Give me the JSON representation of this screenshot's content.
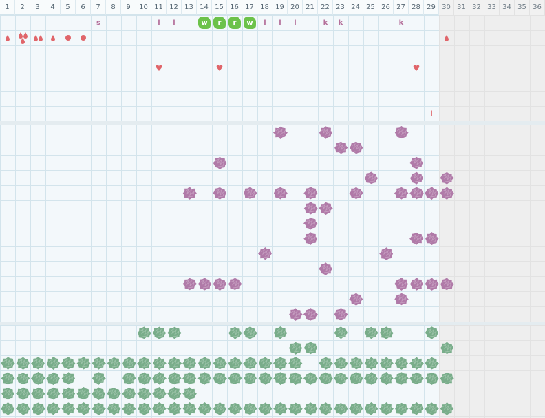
{
  "calendar": {
    "days": [
      "1",
      "2",
      "3",
      "4",
      "5",
      "6",
      "7",
      "8",
      "9",
      "10",
      "11",
      "12",
      "13",
      "14",
      "15",
      "16",
      "17",
      "18",
      "19",
      "20",
      "21",
      "22",
      "23",
      "24",
      "25",
      "26",
      "27",
      "28",
      "29",
      "30",
      "31",
      "32",
      "33",
      "34",
      "35",
      "36"
    ],
    "today_index": 30
  },
  "colors": {
    "grid_line": "#d3e4ec",
    "section_bg": "#f3f8fb",
    "future_bg": "#eeeeee",
    "accent_red": "#e0656a",
    "badge_green": "#6cc24a",
    "letter_purple": "#b5709b",
    "blob_purple": "#b07aa8",
    "blob_green": "#79ad8a"
  },
  "symbols": {
    "letters": [
      {
        "day": 7,
        "row": 1,
        "text": "s"
      },
      {
        "day": 11,
        "row": 1,
        "text": "l"
      },
      {
        "day": 12,
        "row": 1,
        "text": "l"
      },
      {
        "day": 18,
        "row": 1,
        "text": "l"
      },
      {
        "day": 19,
        "row": 1,
        "text": "l"
      },
      {
        "day": 20,
        "row": 1,
        "text": "l"
      },
      {
        "day": 22,
        "row": 1,
        "text": "k"
      },
      {
        "day": 23,
        "row": 1,
        "text": "k"
      },
      {
        "day": 27,
        "row": 1,
        "text": "k"
      }
    ],
    "badges": [
      {
        "day": 14,
        "row": 1,
        "text": "w"
      },
      {
        "day": 15,
        "row": 1,
        "text": "r"
      },
      {
        "day": 16,
        "row": 1,
        "text": "r"
      },
      {
        "day": 17,
        "row": 1,
        "text": "w"
      }
    ],
    "drops": [
      {
        "day": 1,
        "row": 2,
        "count": 1
      },
      {
        "day": 2,
        "row": 2,
        "count": 3
      },
      {
        "day": 3,
        "row": 2,
        "count": 2
      },
      {
        "day": 4,
        "row": 2,
        "count": 1
      },
      {
        "day": 30,
        "row": 2,
        "count": 1
      }
    ],
    "dots": [
      {
        "day": 5,
        "row": 2
      },
      {
        "day": 6,
        "row": 2
      }
    ],
    "hearts": [
      {
        "day": 11,
        "row": 4
      },
      {
        "day": 15,
        "row": 4
      },
      {
        "day": 28,
        "row": 4
      }
    ],
    "small_letters": [
      {
        "day": 29,
        "row": 7,
        "text": "l"
      }
    ]
  },
  "mood_purple": [
    {
      "day": 19,
      "row": 1
    },
    {
      "day": 22,
      "row": 1
    },
    {
      "day": 27,
      "row": 1
    },
    {
      "day": 23,
      "row": 2
    },
    {
      "day": 24,
      "row": 2
    },
    {
      "day": 15,
      "row": 3
    },
    {
      "day": 28,
      "row": 3
    },
    {
      "day": 25,
      "row": 4
    },
    {
      "day": 28,
      "row": 4
    },
    {
      "day": 30,
      "row": 4
    },
    {
      "day": 13,
      "row": 5
    },
    {
      "day": 15,
      "row": 5
    },
    {
      "day": 17,
      "row": 5
    },
    {
      "day": 19,
      "row": 5
    },
    {
      "day": 21,
      "row": 5
    },
    {
      "day": 24,
      "row": 5
    },
    {
      "day": 27,
      "row": 5
    },
    {
      "day": 28,
      "row": 5
    },
    {
      "day": 29,
      "row": 5
    },
    {
      "day": 30,
      "row": 5
    },
    {
      "day": 21,
      "row": 6
    },
    {
      "day": 22,
      "row": 6
    },
    {
      "day": 21,
      "row": 7
    },
    {
      "day": 21,
      "row": 8
    },
    {
      "day": 28,
      "row": 8
    },
    {
      "day": 29,
      "row": 8
    },
    {
      "day": 18,
      "row": 9
    },
    {
      "day": 26,
      "row": 9
    },
    {
      "day": 22,
      "row": 10
    },
    {
      "day": 13,
      "row": 11
    },
    {
      "day": 14,
      "row": 11
    },
    {
      "day": 15,
      "row": 11
    },
    {
      "day": 16,
      "row": 11
    },
    {
      "day": 27,
      "row": 11
    },
    {
      "day": 28,
      "row": 11
    },
    {
      "day": 29,
      "row": 11
    },
    {
      "day": 30,
      "row": 11
    },
    {
      "day": 24,
      "row": 12
    },
    {
      "day": 27,
      "row": 12
    },
    {
      "day": 20,
      "row": 13
    },
    {
      "day": 21,
      "row": 13
    },
    {
      "day": 23,
      "row": 13
    }
  ],
  "mood_green": {
    "row1": [
      10,
      11,
      12,
      16,
      17,
      19,
      23,
      25,
      26,
      29
    ],
    "row2": [
      20,
      21,
      30
    ],
    "row3": [
      1,
      2,
      3,
      4,
      5,
      6,
      7,
      8,
      9,
      10,
      11,
      12,
      13,
      14,
      15,
      16,
      17,
      18,
      19,
      20,
      22,
      23,
      24,
      25,
      26,
      27,
      28,
      29
    ],
    "row4": [
      1,
      2,
      3,
      4,
      5,
      7,
      9,
      10,
      11,
      12,
      13,
      14,
      15,
      16,
      17,
      18,
      19,
      20,
      21,
      22,
      23,
      24,
      25,
      26,
      27,
      28,
      29,
      30
    ],
    "row5": [
      1,
      2,
      3,
      4,
      5,
      6,
      7,
      8,
      9,
      10,
      11,
      12,
      13
    ],
    "row6": [
      1,
      2,
      3,
      4,
      5,
      6,
      7,
      8,
      9,
      10,
      11,
      12,
      13,
      14,
      15,
      16,
      17,
      18,
      19,
      20,
      21,
      22,
      23,
      24,
      25,
      26,
      27,
      28,
      29,
      30
    ]
  }
}
